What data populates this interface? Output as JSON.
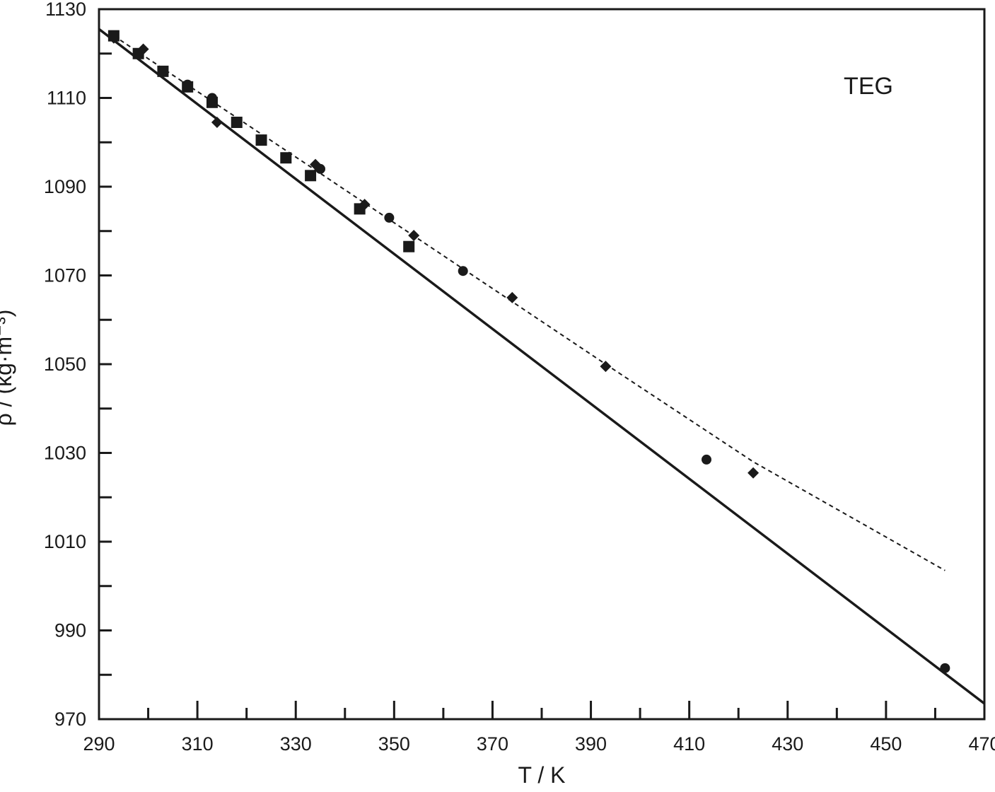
{
  "chart_data": {
    "type": "scatter",
    "title": "",
    "xlabel": "T / K",
    "ylabel": "ρ / (kg·m⁻³)",
    "xlim": [
      290,
      470
    ],
    "ylim": [
      970,
      1130
    ],
    "x_ticks": [
      290,
      310,
      330,
      350,
      370,
      390,
      410,
      430,
      450,
      470
    ],
    "y_ticks": [
      970,
      990,
      1010,
      1030,
      1050,
      1070,
      1090,
      1110,
      1130
    ],
    "grid": false,
    "legend": null,
    "annotations": [
      {
        "text": "TEG",
        "x": 453,
        "y": 1113.5
      }
    ],
    "series": [
      {
        "marker": "square",
        "points": [
          [
            293,
            1124
          ],
          [
            298,
            1120
          ],
          [
            303,
            1116
          ],
          [
            308,
            1112.5
          ],
          [
            313,
            1109
          ],
          [
            318,
            1104.5
          ],
          [
            323,
            1100.5
          ],
          [
            328,
            1096.5
          ],
          [
            333,
            1092.5
          ],
          [
            343,
            1085
          ],
          [
            353,
            1076.5
          ]
        ]
      },
      {
        "marker": "circle",
        "points": [
          [
            293,
            1124
          ],
          [
            298,
            1120
          ],
          [
            303,
            1116
          ],
          [
            308,
            1113
          ],
          [
            313,
            1110
          ],
          [
            335,
            1094
          ],
          [
            349,
            1083
          ],
          [
            364,
            1071
          ],
          [
            413.5,
            1028.5
          ],
          [
            462,
            981.5
          ]
        ]
      },
      {
        "marker": "diamond",
        "points": [
          [
            293,
            1123.5
          ],
          [
            299,
            1121
          ],
          [
            314,
            1104.5
          ],
          [
            334,
            1095
          ],
          [
            344,
            1086
          ],
          [
            354,
            1079
          ],
          [
            374,
            1065
          ],
          [
            393,
            1049.5
          ],
          [
            423,
            1025.5
          ]
        ]
      },
      {
        "line": "solid",
        "points": [
          [
            290,
            1125.5
          ],
          [
            470,
            973.5
          ]
        ]
      },
      {
        "line": "dashed",
        "points": [
          [
            293,
            1124
          ],
          [
            335,
            1093
          ],
          [
            364,
            1071.5
          ],
          [
            393,
            1050
          ],
          [
            423,
            1028
          ],
          [
            462,
            1003.5
          ]
        ]
      }
    ]
  }
}
